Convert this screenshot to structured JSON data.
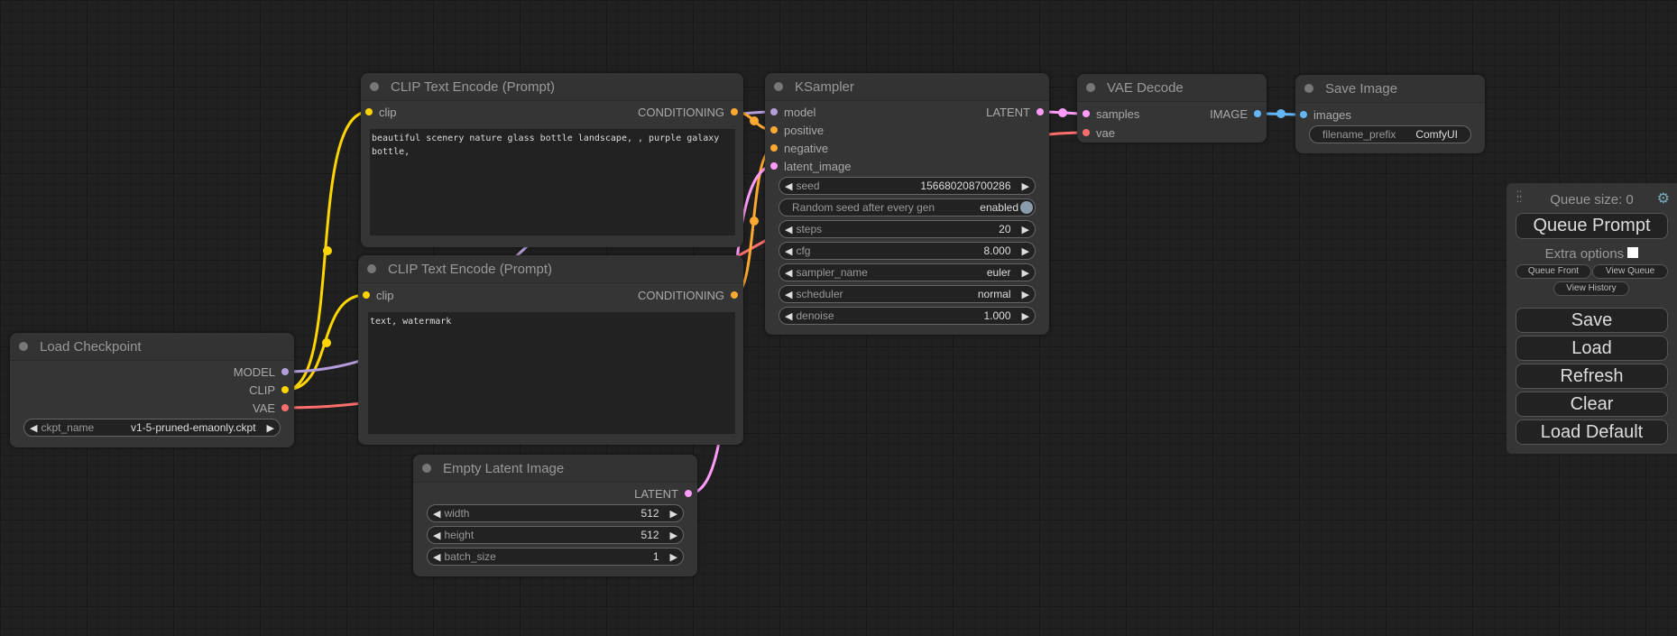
{
  "colors": {
    "clip": "#ffd500",
    "model": "#b39ddb",
    "vae": "#ff6e6e",
    "conditioning": "#ffa931",
    "latent": "#ff9cf9",
    "image": "#64b5f6"
  },
  "load_checkpoint": {
    "title": "Load Checkpoint",
    "outputs": [
      "MODEL",
      "CLIP",
      "VAE"
    ],
    "ckpt_name_label": "ckpt_name",
    "ckpt_name_value": "v1-5-pruned-emaonly.ckpt"
  },
  "clip_pos": {
    "title": "CLIP Text Encode (Prompt)",
    "input": "clip",
    "output": "CONDITIONING",
    "text": "beautiful scenery nature glass bottle landscape, , purple galaxy bottle,"
  },
  "clip_neg": {
    "title": "CLIP Text Encode (Prompt)",
    "input": "clip",
    "output": "CONDITIONING",
    "text": "text, watermark"
  },
  "empty_latent": {
    "title": "Empty Latent Image",
    "output": "LATENT",
    "widgets": [
      {
        "label": "width",
        "value": "512"
      },
      {
        "label": "height",
        "value": "512"
      },
      {
        "label": "batch_size",
        "value": "1"
      }
    ]
  },
  "ksampler": {
    "title": "KSampler",
    "inputs": [
      "model",
      "positive",
      "negative",
      "latent_image"
    ],
    "output": "LATENT",
    "seed": {
      "label": "seed",
      "value": "156680208700286"
    },
    "random_seed": {
      "label": "Random seed after every gen",
      "value": "enabled"
    },
    "widgets": [
      {
        "label": "steps",
        "value": "20"
      },
      {
        "label": "cfg",
        "value": "8.000"
      },
      {
        "label": "sampler_name",
        "value": "euler"
      },
      {
        "label": "scheduler",
        "value": "normal"
      },
      {
        "label": "denoise",
        "value": "1.000"
      }
    ]
  },
  "vae_decode": {
    "title": "VAE Decode",
    "inputs": [
      "samples",
      "vae"
    ],
    "output": "IMAGE"
  },
  "save_image": {
    "title": "Save Image",
    "input": "images",
    "filename_prefix_label": "filename_prefix",
    "filename_prefix_value": "ComfyUI"
  },
  "panel": {
    "queue_size": "Queue size: 0",
    "queue_prompt": "Queue Prompt",
    "extra_options": "Extra options",
    "queue_front": "Queue Front",
    "view_queue": "View Queue",
    "view_history": "View History",
    "save": "Save",
    "load": "Load",
    "refresh": "Refresh",
    "clear": "Clear",
    "load_default": "Load Default"
  }
}
